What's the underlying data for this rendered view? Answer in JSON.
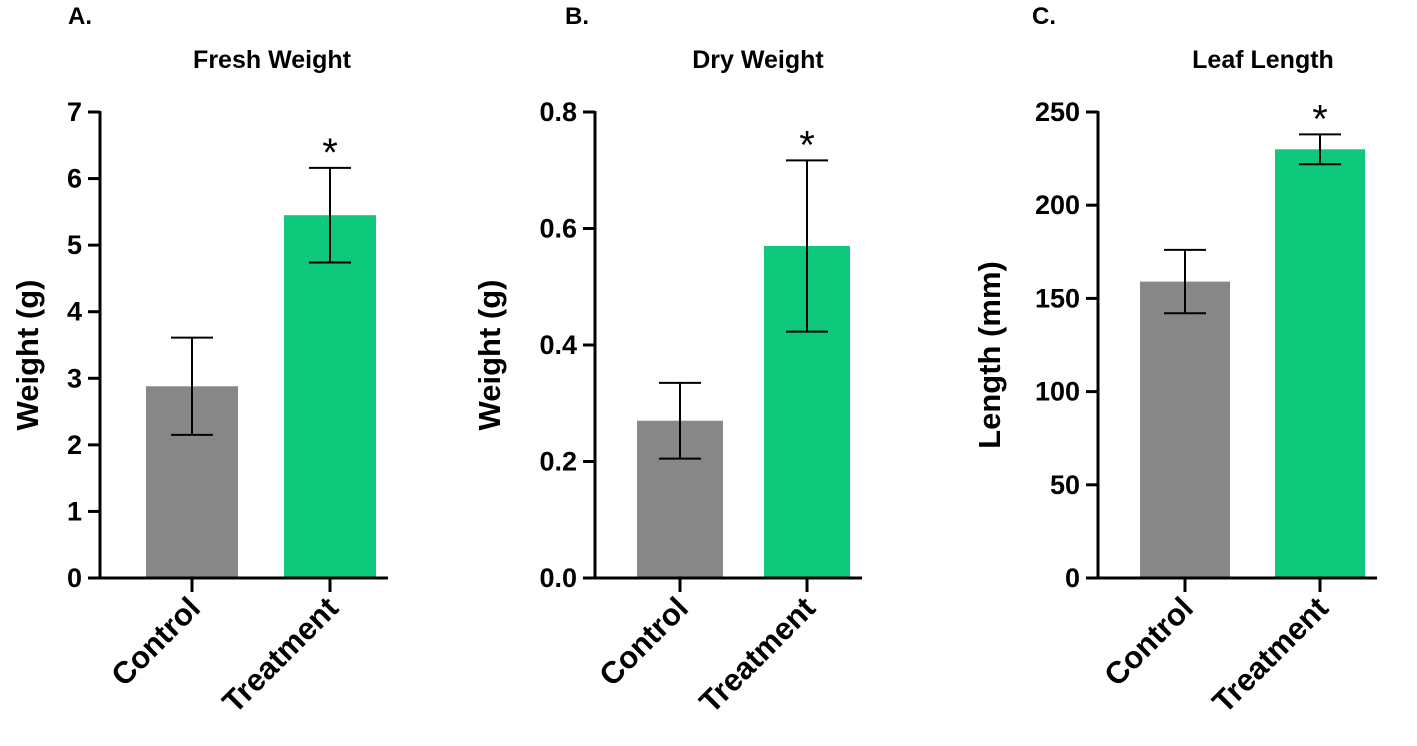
{
  "chart_data": [
    {
      "type": "bar",
      "panel": "A.",
      "title": "Fresh Weight",
      "xlabel": "",
      "ylabel": "Weight (g)",
      "ylim": [
        0,
        7
      ],
      "yticks": [
        0,
        1,
        2,
        3,
        4,
        5,
        6,
        7
      ],
      "ytick_labels": [
        "0",
        "1",
        "2",
        "3",
        "4",
        "5",
        "6",
        "7"
      ],
      "categories": [
        "Control",
        "Treatment"
      ],
      "values": [
        2.88,
        5.45
      ],
      "error": [
        0.73,
        0.71
      ],
      "colors": [
        "#878787",
        "#0ec97c"
      ],
      "significance": [
        "",
        "*"
      ]
    },
    {
      "type": "bar",
      "panel": "B.",
      "title": "Dry Weight",
      "xlabel": "",
      "ylabel": "Weight (g)",
      "ylim": [
        0,
        0.8
      ],
      "yticks": [
        0,
        0.2,
        0.4,
        0.6,
        0.8
      ],
      "ytick_labels": [
        "0.0",
        "0.2",
        "0.4",
        "0.6",
        "0.8"
      ],
      "categories": [
        "Control",
        "Treatment"
      ],
      "values": [
        0.27,
        0.57
      ],
      "error": [
        0.065,
        0.147
      ],
      "colors": [
        "#878787",
        "#0ec97c"
      ],
      "significance": [
        "",
        "*"
      ]
    },
    {
      "type": "bar",
      "panel": "C.",
      "title": "Leaf Length",
      "xlabel": "",
      "ylabel": "Length (mm)",
      "ylim": [
        0,
        250
      ],
      "yticks": [
        0,
        50,
        100,
        150,
        200,
        250
      ],
      "ytick_labels": [
        "0",
        "50",
        "100",
        "150",
        "200",
        "250"
      ],
      "categories": [
        "Control",
        "Treatment"
      ],
      "values": [
        159,
        230
      ],
      "error": [
        17,
        8
      ],
      "colors": [
        "#878787",
        "#0ec97c"
      ],
      "significance": [
        "",
        "*"
      ]
    }
  ]
}
